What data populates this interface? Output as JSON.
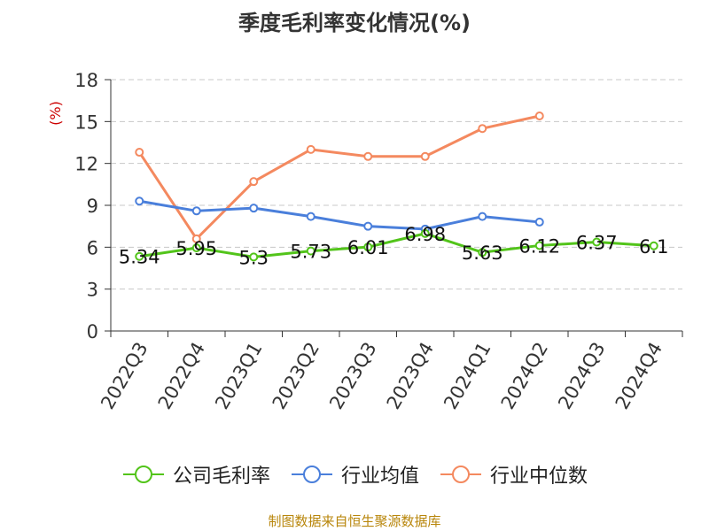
{
  "title": "季度毛利率变化情况(%)",
  "source": "制图数据来自恒生聚源数据库",
  "chart_data": {
    "type": "line",
    "title": "季度毛利率变化情况(%)",
    "ylabel": "(%)",
    "xlabel": "",
    "ylim": [
      0,
      18
    ],
    "yticks": [
      0,
      3,
      6,
      9,
      12,
      15,
      18
    ],
    "grid": true,
    "legend_position": "bottom",
    "categories": [
      "2022Q3",
      "2022Q4",
      "2023Q1",
      "2023Q2",
      "2023Q3",
      "2023Q4",
      "2024Q1",
      "2024Q2",
      "2024Q3",
      "2024Q4"
    ],
    "series": [
      {
        "name": "公司毛利率",
        "color": "#52c41a",
        "values": [
          5.34,
          5.95,
          5.3,
          5.73,
          6.01,
          6.98,
          5.63,
          6.12,
          6.37,
          6.1
        ],
        "data_labels": [
          "5.34",
          "5.95",
          "5.3",
          "5.73",
          "6.01",
          "6.98",
          "5.63",
          "6.12",
          "6.37",
          "6.1"
        ]
      },
      {
        "name": "行业均值",
        "color": "#4a7fdb",
        "values": [
          9.3,
          8.6,
          8.8,
          8.2,
          7.5,
          7.3,
          8.2,
          7.8,
          null,
          null
        ]
      },
      {
        "name": "行业中位数",
        "color": "#f4895f",
        "values": [
          12.8,
          6.6,
          10.7,
          13.0,
          12.5,
          12.5,
          14.5,
          15.4,
          null,
          null
        ]
      }
    ]
  }
}
